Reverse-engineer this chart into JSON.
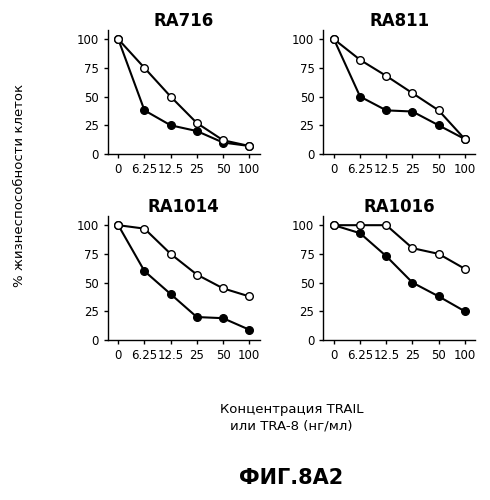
{
  "x_values": [
    0,
    6.25,
    12.5,
    25,
    50,
    100
  ],
  "x_tick_labels": [
    "0",
    "6.25",
    "12.5",
    "25",
    "50",
    "100"
  ],
  "subplots": [
    {
      "title": "RA716",
      "open_circle": [
        100,
        75,
        50,
        27,
        12,
        7
      ],
      "filled_circle": [
        100,
        38,
        25,
        20,
        10,
        7
      ]
    },
    {
      "title": "RA811",
      "open_circle": [
        100,
        82,
        68,
        53,
        38,
        13
      ],
      "filled_circle": [
        100,
        50,
        38,
        37,
        25,
        13
      ]
    },
    {
      "title": "RA1014",
      "open_circle": [
        100,
        97,
        75,
        57,
        45,
        38
      ],
      "filled_circle": [
        100,
        60,
        40,
        20,
        19,
        9
      ]
    },
    {
      "title": "RA1016",
      "open_circle": [
        100,
        100,
        100,
        80,
        75,
        62
      ],
      "filled_circle": [
        100,
        93,
        73,
        50,
        38,
        25
      ]
    }
  ],
  "ylabel": "% жизнеспособности клеток",
  "xlabel_line1": "Концентрация TRAIL",
  "xlabel_line2": "или TRA-8 (нг/мл)",
  "figure_label": "ФИГ.8А2",
  "ylim": [
    0,
    108
  ],
  "y_ticks": [
    0,
    25,
    50,
    75,
    100
  ],
  "title_fontsize": 12,
  "label_fontsize": 9.5,
  "tick_fontsize": 8.5,
  "fig_label_fontsize": 15,
  "marker_size": 5.5,
  "line_width": 1.5
}
